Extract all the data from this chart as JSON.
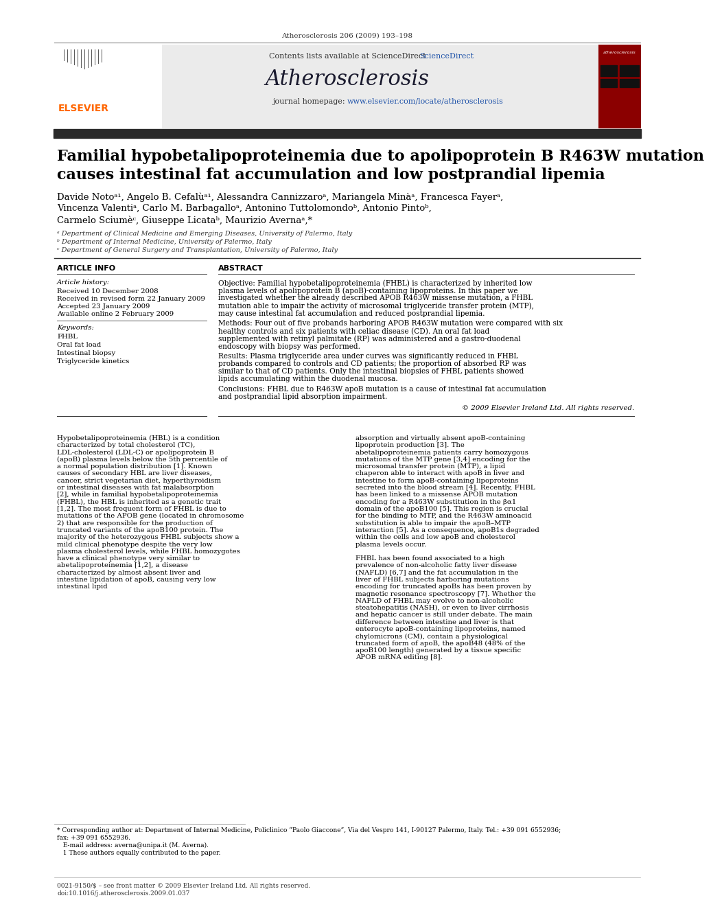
{
  "page_header": "Atherosclerosis 206 (2009) 193–198",
  "journal_name": "Atherosclerosis",
  "contents_line": "Contents lists available at ScienceDirect",
  "journal_homepage": "journal homepage: www.elsevier.com/locate/atherosclerosis",
  "title_line1": "Familial hypobetalipoproteinemia due to apolipoprotein B R463W mutation",
  "title_line2": "causes intestinal fat accumulation and low postprandial lipemia",
  "authors": "Davide Notoᵃ¹, Angelo B. Cefalùᵃ¹, Alessandra Cannizzaroᵃ, Mariangela Minàᵃ, Francesca Fayerᵃ,",
  "authors2": "Vincenza Valentiᵃ, Carlo M. Barbagalloᵃ, Antonino Tuttolomondoᵇ, Antonio Pintoᵇ,",
  "authors3": "Carmelo Sciumèᶜ, Giuseppe Licataᵇ, Maurizio Avernaᵃ,*",
  "affil_a": "ᵃ Department of Clinical Medicine and Emerging Diseases, University of Palermo, Italy",
  "affil_b": "ᵇ Department of Internal Medicine, University of Palermo, Italy",
  "affil_c": "ᶜ Department of General Surgery and Transplantation, University of Palermo, Italy",
  "article_info_header": "ARTICLE INFO",
  "abstract_header": "ABSTRACT",
  "article_history_label": "Article history:",
  "received": "Received 10 December 2008",
  "received_revised": "Received in revised form 22 January 2009",
  "accepted": "Accepted 23 January 2009",
  "available_online": "Available online 2 February 2009",
  "keywords_label": "Keywords:",
  "keyword1": "FHBL",
  "keyword2": "Oral fat load",
  "keyword3": "Intestinal biopsy",
  "keyword4": "Triglyceride kinetics",
  "objective_label": "Objective:",
  "objective_text": " Familial hypobetalipoproteinemia (FHBL) is characterized by inherited low plasma levels of apolipoprotein B (apoB)-containing lipoproteins. In this paper we investigated whether the already described APOB R463W missense mutation, a FHBL mutation able to impair the activity of microsomal triglyceride transfer protein (MTP), may cause intestinal fat accumulation and reduced postprandial lipemia.",
  "methods_label": "Methods:",
  "methods_text": " Four out of five probands harboring APOB R463W mutation were compared with six healthy controls and six patients with celiac disease (CD). An oral fat load supplemented with retinyl palmitate (RP) was administered and a gastro-duodenal endoscopy with biopsy was performed.",
  "results_label": "Results:",
  "results_text": " Plasma triglyceride area under curves was significantly reduced in FHBL probands compared to controls and CD patients; the proportion of absorbed RP was similar to that of CD patients. Only the intestinal biopsies of FHBL patients showed lipids accumulating within the duodenal mucosa.",
  "conclusions_label": "Conclusions:",
  "conclusions_text": " FHBL due to R463W apoB mutation is a cause of intestinal fat accumulation and postprandial lipid absorption impairment.",
  "copyright": "© 2009 Elsevier Ireland Ltd. All rights reserved.",
  "body_col1_para1": "    Hypobetalipoproteinemia (HBL) is a condition characterized by total cholesterol (TC), LDL-cholesterol (LDL-C) or apolipoprotein B (apoB) plasma levels below the 5th percentile of a normal population distribution [1]. Known causes of secondary HBL are liver diseases, cancer, strict vegetarian diet, hyperthyroidism or intestinal diseases with fat malabsorption [2], while in familial hypobetalipoproteinemia (FHBL), the HBL is inherited as a genetic trait [1,2]. The most frequent form of FHBL is due to mutations of the APOB gene (located in chromosome 2) that are responsible for the production of truncated variants of the apoB100 protein. The majority of the heterozygous FHBL subjects show a mild clinical phenotype despite the very low plasma cholesterol levels, while FHBL homozygotes have a clinical phenotype very similar to abetalipoproteinemia [1,2], a disease characterized by almost absent liver and intestine lipidation of apoB, causing very low intestinal lipid",
  "body_col2_para1": "absorption and virtually absent apoB-containing lipoprotein production [3]. The abetalipoproteinemia patients carry homozygous mutations of the MTP gene [3,4] encoding for the microsomal transfer protein (MTP), a lipid chaperon able to interact with apoB in liver and intestine to form apoB-containing lipoproteins secreted into the blood stream [4]. Recently, FHBL has been linked to a missense APOB mutation encoding for a R463W substitution in the βα1 domain of the apoB100 [5]. This region is crucial for the binding to MTP, and the R463W aminoacid substitution is able to impair the apoB–MTP interaction [5]. As a consequence, apoB1s degraded within the cells and low apoB and cholesterol plasma levels occur.",
  "body_col2_para2": "    FHBL has been found associated to a high prevalence of non-alcoholic fatty liver disease (NAFLD) [6,7] and the fat accumulation in the liver of FHBL subjects harboring mutations encoding for truncated apoBs has been proven by magnetic resonance spectroscopy [7]. Whether the NAFLD of FHBL may evolve to non-alcoholic steatohepatitis (NASH), or even to liver cirrhosis and hepatic cancer is still under debate. The main difference between intestine and liver is that enterocyte apoB-containing lipoproteins, named chylomicrons (CM), contain a physiological truncated form of apoB, the apoB48 (48% of the apoB100 length) generated by a tissue specific APOB mRNA editing [8].",
  "footnote1": "* Corresponding author at: Department of Internal Medicine, Policlinico “Paolo Giaccone”, Via del Vespro 141, I-90127 Palermo, Italy. Tel.: +39 091 6552936;",
  "footnote1b": "fax: +39 091 6552936.",
  "footnote_email": "   E-mail address: averna@unipa.it (M. Averna).",
  "footnote2": "   1 These authors equally contributed to the paper.",
  "footer_text1": "0021-9150/$ – see front matter © 2009 Elsevier Ireland Ltd. All rights reserved.",
  "footer_text2": "doi:10.1016/j.atherosclerosis.2009.01.037",
  "bg_color": "#ffffff",
  "elsevier_orange": "#ff6600",
  "link_color": "#2255aa"
}
